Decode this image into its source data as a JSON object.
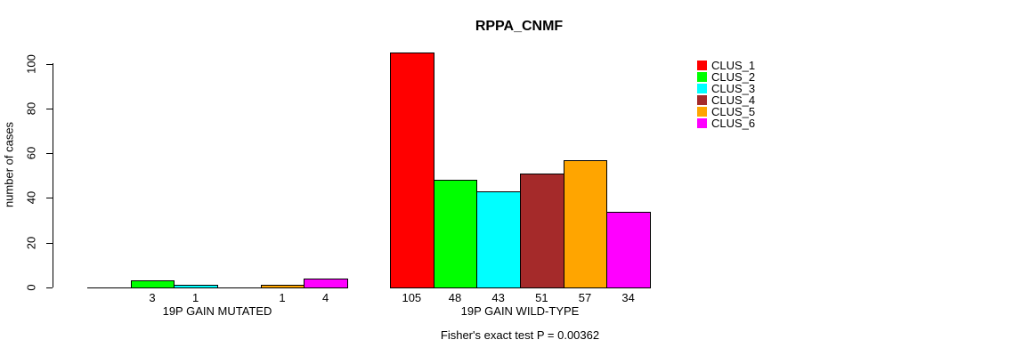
{
  "title": "RPPA_CNMF",
  "footer": "Fisher's exact test P = 0.00362",
  "y_axis": {
    "label": "number of cases"
  },
  "chart_data": {
    "type": "bar",
    "title": "RPPA_CNMF",
    "xlabel": "",
    "ylabel": "number of cases",
    "ylim": [
      0,
      105
    ],
    "yticks": [
      0,
      20,
      40,
      60,
      80,
      100
    ],
    "grid": false,
    "legend_position": "right",
    "bar_value_labels": "shown under each bar, zeros omitted",
    "categories": [
      "19P GAIN MUTATED",
      "19P GAIN WILD-TYPE"
    ],
    "series": [
      {
        "name": "CLUS_1",
        "color": "#ff0000",
        "values": [
          0,
          105
        ]
      },
      {
        "name": "CLUS_2",
        "color": "#00ff00",
        "values": [
          3,
          48
        ]
      },
      {
        "name": "CLUS_3",
        "color": "#00ffff",
        "values": [
          1,
          43
        ]
      },
      {
        "name": "CLUS_4",
        "color": "#a52a2a",
        "values": [
          0,
          51
        ]
      },
      {
        "name": "CLUS_5",
        "color": "#ffa500",
        "values": [
          1,
          57
        ]
      },
      {
        "name": "CLUS_6",
        "color": "#ff00ff",
        "values": [
          4,
          34
        ]
      }
    ],
    "annotation": "Fisher's exact test P = 0.00362"
  }
}
